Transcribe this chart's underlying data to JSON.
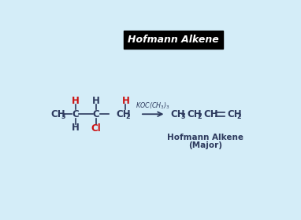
{
  "bg_color": "#d4edf8",
  "title": "Hofmann Alkene",
  "title_bg": "#000000",
  "title_color": "#ffffff",
  "dark_color": "#2d3a5e",
  "red_color": "#cc1111",
  "bond_color": "#2d3a5e",
  "arrow_color": "#2d3a5e",
  "subtitle_line1": "Hofmann Alkene",
  "subtitle_line2": "(Major)"
}
